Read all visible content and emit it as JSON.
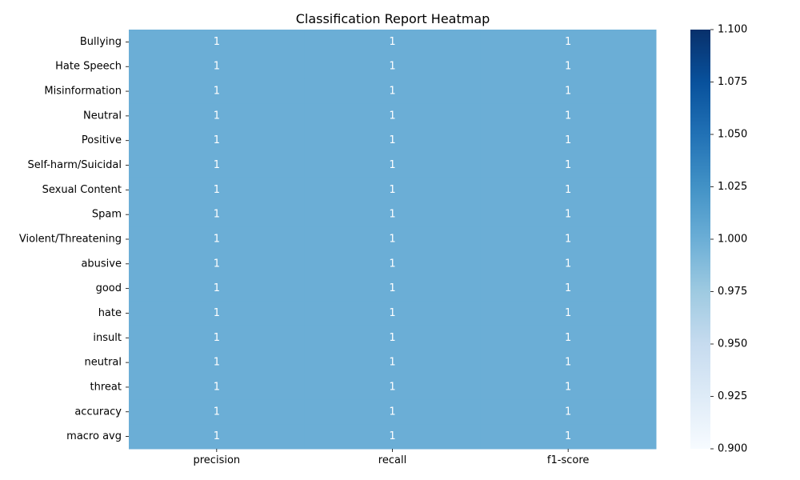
{
  "chart_data": {
    "type": "heatmap",
    "title": "Classification Report Heatmap",
    "xlabel": "",
    "ylabel": "",
    "columns": [
      "precision",
      "recall",
      "f1-score"
    ],
    "rows": [
      "Bullying",
      "Hate Speech",
      "Misinformation",
      "Neutral",
      "Positive",
      "Self-harm/Suicidal",
      "Sexual Content",
      "Spam",
      "Violent/Threatening",
      "abusive",
      "good",
      "hate",
      "insult",
      "neutral",
      "threat",
      "accuracy",
      "macro avg"
    ],
    "values": [
      [
        1,
        1,
        1
      ],
      [
        1,
        1,
        1
      ],
      [
        1,
        1,
        1
      ],
      [
        1,
        1,
        1
      ],
      [
        1,
        1,
        1
      ],
      [
        1,
        1,
        1
      ],
      [
        1,
        1,
        1
      ],
      [
        1,
        1,
        1
      ],
      [
        1,
        1,
        1
      ],
      [
        1,
        1,
        1
      ],
      [
        1,
        1,
        1
      ],
      [
        1,
        1,
        1
      ],
      [
        1,
        1,
        1
      ],
      [
        1,
        1,
        1
      ],
      [
        1,
        1,
        1
      ],
      [
        1,
        1,
        1
      ],
      [
        1,
        1,
        1
      ]
    ],
    "annotations": true,
    "colormap": "Blues",
    "colorbar": {
      "range": [
        0.9,
        1.1
      ],
      "ticks": [
        "0.900",
        "0.925",
        "0.950",
        "0.975",
        "1.000",
        "1.025",
        "1.050",
        "1.075",
        "1.100"
      ]
    },
    "colors": {
      "cell": "#6aaed6",
      "annotation_text": "#ffffff",
      "axis_text": "#000000"
    }
  }
}
